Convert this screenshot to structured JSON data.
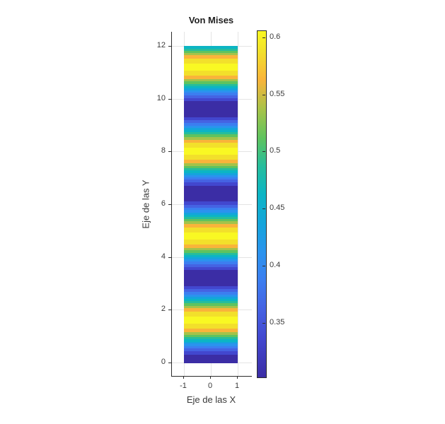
{
  "chart_data": {
    "type": "heatmap",
    "subtype": "filled-contour-stripes",
    "title": "Von Mises",
    "xlabel": "Eje de las X",
    "ylabel": "Eje de las Y",
    "xlim": [
      -1.5,
      1.5
    ],
    "ylim": [
      -0.5,
      12.5
    ],
    "domain_x": [
      -1,
      1
    ],
    "domain_y": [
      0,
      12
    ],
    "grid": true,
    "xticks": [
      {
        "value": -1,
        "label": "-1"
      },
      {
        "value": 0,
        "label": "0"
      },
      {
        "value": 1,
        "label": "1"
      }
    ],
    "yticks": [
      {
        "value": 0,
        "label": "0"
      },
      {
        "value": 2,
        "label": "2"
      },
      {
        "value": 4,
        "label": "4"
      },
      {
        "value": 6,
        "label": "6"
      },
      {
        "value": 8,
        "label": "8"
      },
      {
        "value": 10,
        "label": "10"
      },
      {
        "value": 12,
        "label": "12"
      }
    ],
    "colormap": "parula",
    "palette": [
      "#3b2da5",
      "#4247cf",
      "#4563e3",
      "#3c7ef0",
      "#2b93ee",
      "#15a4dc",
      "#0cb5c4",
      "#26bd9c",
      "#5ec35f",
      "#a3c34a",
      "#f9b43a",
      "#f2e02b",
      "#f9f823"
    ],
    "value_profile": {
      "description": "Von Mises value varies sinusoidally along y only (uniform in x): v(y) = 0.4525 - 0.1525*cos(2*pi*y/3.2)",
      "v_min": 0.303,
      "v_max": 0.605,
      "period_y": 3.2,
      "minima_at_y": [
        0,
        3.2,
        6.4,
        9.6
      ],
      "maxima_at_y": [
        1.6,
        4.8,
        8.0,
        11.2
      ],
      "contour_level_step": 0.025
    },
    "stripes": [
      [
        12.0,
        11.9,
        6
      ],
      [
        11.9,
        11.81,
        7
      ],
      [
        11.81,
        11.72,
        8
      ],
      [
        11.72,
        11.64,
        9
      ],
      [
        11.64,
        11.52,
        10
      ],
      [
        11.52,
        11.33,
        11
      ],
      [
        11.33,
        11.07,
        12
      ],
      [
        11.07,
        10.88,
        11
      ],
      [
        10.88,
        10.75,
        10
      ],
      [
        10.75,
        10.65,
        9
      ],
      [
        10.65,
        10.56,
        8
      ],
      [
        10.56,
        10.48,
        7
      ],
      [
        10.48,
        10.39,
        6
      ],
      [
        10.39,
        10.31,
        5
      ],
      [
        10.31,
        10.22,
        4
      ],
      [
        10.22,
        10.13,
        3
      ],
      [
        10.13,
        10.02,
        2
      ],
      [
        10.02,
        9.9,
        1
      ],
      [
        9.9,
        9.3,
        0
      ],
      [
        9.3,
        9.18,
        1
      ],
      [
        9.18,
        9.07,
        2
      ],
      [
        9.07,
        8.98,
        3
      ],
      [
        8.98,
        8.89,
        4
      ],
      [
        8.89,
        8.81,
        5
      ],
      [
        8.81,
        8.72,
        6
      ],
      [
        8.72,
        8.64,
        7
      ],
      [
        8.64,
        8.55,
        8
      ],
      [
        8.55,
        8.45,
        9
      ],
      [
        8.45,
        8.32,
        10
      ],
      [
        8.32,
        8.13,
        11
      ],
      [
        8.13,
        7.87,
        12
      ],
      [
        7.87,
        7.68,
        11
      ],
      [
        7.68,
        7.55,
        10
      ],
      [
        7.55,
        7.45,
        9
      ],
      [
        7.45,
        7.36,
        8
      ],
      [
        7.36,
        7.28,
        7
      ],
      [
        7.28,
        7.19,
        6
      ],
      [
        7.19,
        7.11,
        5
      ],
      [
        7.11,
        7.02,
        4
      ],
      [
        7.02,
        6.93,
        3
      ],
      [
        6.93,
        6.82,
        2
      ],
      [
        6.82,
        6.7,
        1
      ],
      [
        6.7,
        6.1,
        0
      ],
      [
        6.1,
        5.98,
        1
      ],
      [
        5.98,
        5.87,
        2
      ],
      [
        5.87,
        5.78,
        3
      ],
      [
        5.78,
        5.69,
        4
      ],
      [
        5.69,
        5.61,
        5
      ],
      [
        5.61,
        5.53,
        6
      ],
      [
        5.53,
        5.44,
        7
      ],
      [
        5.44,
        5.35,
        8
      ],
      [
        5.35,
        5.25,
        9
      ],
      [
        5.25,
        5.12,
        10
      ],
      [
        5.12,
        4.93,
        11
      ],
      [
        4.93,
        4.67,
        12
      ],
      [
        4.67,
        4.48,
        11
      ],
      [
        4.48,
        4.35,
        10
      ],
      [
        4.35,
        4.25,
        9
      ],
      [
        4.25,
        4.16,
        8
      ],
      [
        4.16,
        4.08,
        7
      ],
      [
        4.08,
        3.99,
        6
      ],
      [
        3.99,
        3.91,
        5
      ],
      [
        3.91,
        3.82,
        4
      ],
      [
        3.82,
        3.73,
        3
      ],
      [
        3.73,
        3.62,
        2
      ],
      [
        3.62,
        3.5,
        1
      ],
      [
        3.5,
        2.9,
        0
      ],
      [
        2.9,
        2.78,
        1
      ],
      [
        2.78,
        2.67,
        2
      ],
      [
        2.67,
        2.58,
        3
      ],
      [
        2.58,
        2.49,
        4
      ],
      [
        2.49,
        2.41,
        5
      ],
      [
        2.41,
        2.33,
        6
      ],
      [
        2.33,
        2.24,
        7
      ],
      [
        2.24,
        2.15,
        8
      ],
      [
        2.15,
        2.05,
        9
      ],
      [
        2.05,
        1.92,
        10
      ],
      [
        1.92,
        1.73,
        11
      ],
      [
        1.73,
        1.47,
        12
      ],
      [
        1.47,
        1.28,
        11
      ],
      [
        1.28,
        1.15,
        10
      ],
      [
        1.15,
        1.05,
        9
      ],
      [
        1.05,
        0.96,
        8
      ],
      [
        0.96,
        0.88,
        7
      ],
      [
        0.88,
        0.79,
        6
      ],
      [
        0.79,
        0.71,
        5
      ],
      [
        0.71,
        0.62,
        4
      ],
      [
        0.62,
        0.53,
        3
      ],
      [
        0.53,
        0.42,
        2
      ],
      [
        0.42,
        0.3,
        1
      ],
      [
        0.3,
        0.0,
        0
      ]
    ],
    "colorbar": {
      "range": [
        0.303,
        0.606
      ],
      "ticks": [
        {
          "value": 0.35,
          "label": "0.35"
        },
        {
          "value": 0.4,
          "label": "0.4"
        },
        {
          "value": 0.45,
          "label": "0.45"
        },
        {
          "value": 0.5,
          "label": "0.5"
        },
        {
          "value": 0.55,
          "label": "0.55"
        },
        {
          "value": 0.6,
          "label": "0.6"
        }
      ],
      "gradient_stops_pct_from_bottom": [
        {
          "pos": 0,
          "color": "#3b2da5"
        },
        {
          "pos": 11,
          "color": "#4247cf"
        },
        {
          "pos": 20,
          "color": "#4563e3"
        },
        {
          "pos": 28,
          "color": "#3c7ef0"
        },
        {
          "pos": 36,
          "color": "#2b93ee"
        },
        {
          "pos": 44,
          "color": "#15a4dc"
        },
        {
          "pos": 53,
          "color": "#0cb5c4"
        },
        {
          "pos": 61,
          "color": "#26bd9c"
        },
        {
          "pos": 69,
          "color": "#5ec35f"
        },
        {
          "pos": 77,
          "color": "#a3c34a"
        },
        {
          "pos": 86,
          "color": "#f9b43a"
        },
        {
          "pos": 94,
          "color": "#f2e02b"
        },
        {
          "pos": 100,
          "color": "#f9f823"
        }
      ]
    }
  }
}
